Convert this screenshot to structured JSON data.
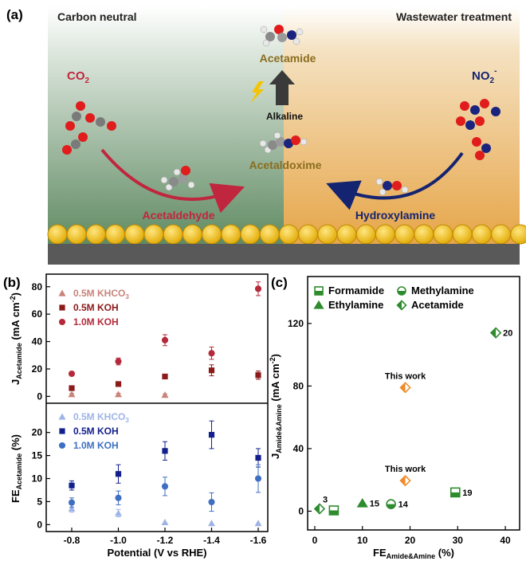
{
  "panel_a": {
    "label": "(a)",
    "left_title": "Carbon neutral",
    "right_title": "Wastewater treatment",
    "co2_label": "CO",
    "co2_sub": "2",
    "no2_label": "NO",
    "no2_sub": "2",
    "no2_sup": "-",
    "acetamide": "Acetamide",
    "alkaline": "Alkaline",
    "acetaldoxime": "Acetaldoxime",
    "acetaldehyde": "Acetaldehyde",
    "hydroxylamine": "Hydroxylamine",
    "colors": {
      "left_bg": "#5f8a62",
      "right_bg": "#e6a548",
      "electrode": "#f7c21b",
      "red_arrow": "#c0263e",
      "blue_arrow": "#152470",
      "label_gold": "#8a6d1e"
    }
  },
  "chart_data": [
    {
      "panel": "(b)",
      "type": "scatter",
      "categories": [
        "-0.8",
        "-1.0",
        "-1.2",
        "-1.4",
        "-1.6"
      ],
      "xlabel": "Potential (V vs RHE)",
      "top": {
        "ylabel_main": "J",
        "ylabel_sub": "Acetamide",
        "ylabel_unit": " (mA cm",
        "ylabel_sup": "-2",
        "ylabel_close": ")",
        "ylim": [
          -5,
          88
        ],
        "yticks": [
          0,
          20,
          40,
          60,
          80
        ],
        "ytick_labels": [
          "0",
          "20",
          "40",
          "60",
          "80"
        ],
        "series": [
          {
            "name": "0.5M KHCO",
            "name_sub": "3",
            "marker": "triangle",
            "color": "#c9837a",
            "values": [
              1.5,
              1.5,
              1.0,
              null,
              null
            ],
            "errors": [
              0.8,
              0.8,
              0.8,
              null,
              null
            ]
          },
          {
            "name": "0.5M KOH",
            "marker": "square",
            "color": "#8b1a1a",
            "values": [
              6,
              9,
              14.5,
              19,
              15.5
            ],
            "errors": [
              1.0,
              1.2,
              1.5,
              4.0,
              3.0
            ]
          },
          {
            "name": "1.0M KOH",
            "marker": "circle",
            "color": "#b42a3a",
            "values": [
              16.5,
              25.5,
              41,
              31.5,
              78.5
            ],
            "errors": [
              1.5,
              2.5,
              4.0,
              4.5,
              5.0
            ]
          }
        ]
      },
      "bottom": {
        "ylabel_main": "FE",
        "ylabel_sub": "Acetamide",
        "ylabel_unit": " (%)",
        "ylim": [
          -1.5,
          26
        ],
        "yticks": [
          0,
          5,
          10,
          15,
          20
        ],
        "ytick_labels": [
          "0",
          "5",
          "10",
          "15",
          "20"
        ],
        "series": [
          {
            "name": "0.5M KHCO",
            "name_sub": "3",
            "marker": "triangle",
            "color": "#9fb4e6",
            "values": [
              3.5,
              2.5,
              0.5,
              0.3,
              0.3
            ],
            "errors": [
              0.8,
              0.8,
              null,
              null,
              null
            ]
          },
          {
            "name": "0.5M KOH",
            "marker": "square",
            "color": "#13208c",
            "values": [
              8.5,
              11,
              16,
              19.5,
              14.5
            ],
            "errors": [
              1.0,
              2.0,
              2.0,
              3.0,
              2.0
            ]
          },
          {
            "name": "1.0M KOH",
            "marker": "circle",
            "color": "#3f6fc2",
            "values": [
              4.8,
              5.8,
              8.3,
              4.9,
              10
            ],
            "errors": [
              1.0,
              1.5,
              2.0,
              2.0,
              3.0
            ]
          }
        ]
      }
    },
    {
      "panel": "(c)",
      "type": "scatter",
      "xlabel_main": "FE",
      "xlabel_sub": "Amide&Amine",
      "xlabel_unit": " (%)",
      "ylabel_main": "J",
      "ylabel_sub": "Amide&Amine",
      "ylabel_unit": " (mA cm",
      "ylabel_sup": "-2",
      "ylabel_close": ")",
      "xlim": [
        -1.5,
        43
      ],
      "ylim": [
        -12,
        150
      ],
      "xticks": [
        0,
        10,
        20,
        30,
        40
      ],
      "xtick_labels": [
        "0",
        "10",
        "20",
        "30",
        "40"
      ],
      "yticks": [
        0,
        40,
        80,
        120
      ],
      "ytick_labels": [
        "0",
        "40",
        "80",
        "120"
      ],
      "legend": [
        {
          "name": "Formamide",
          "marker": "half-square"
        },
        {
          "name": "Methylamine",
          "marker": "half-circle"
        },
        {
          "name": "Ethylamine",
          "marker": "half-triangle"
        },
        {
          "name": "Acetamide",
          "marker": "half-diamond"
        }
      ],
      "points": [
        {
          "x": 1.0,
          "y": 1.5,
          "marker": "half-diamond",
          "color": "#2e8b2e",
          "label": "3"
        },
        {
          "x": 4.0,
          "y": 0.5,
          "marker": "half-square",
          "color": "#2e8b2e",
          "label": ""
        },
        {
          "x": 10.0,
          "y": 5.0,
          "marker": "half-triangle",
          "color": "#2e8b2e",
          "label": "15"
        },
        {
          "x": 16.0,
          "y": 4.5,
          "marker": "half-circle",
          "color": "#2e8b2e",
          "label": "14"
        },
        {
          "x": 29.5,
          "y": 12.0,
          "marker": "half-square",
          "color": "#2e8b2e",
          "label": "19"
        },
        {
          "x": 38.0,
          "y": 114.0,
          "marker": "half-diamond",
          "color": "#2e8b2e",
          "label": "20"
        },
        {
          "x": 19.0,
          "y": 79.0,
          "marker": "half-diamond",
          "color": "#f08a2a",
          "label": "This work"
        },
        {
          "x": 19.0,
          "y": 19.5,
          "marker": "half-diamond",
          "color": "#f08a2a",
          "label": "This work"
        }
      ]
    }
  ]
}
